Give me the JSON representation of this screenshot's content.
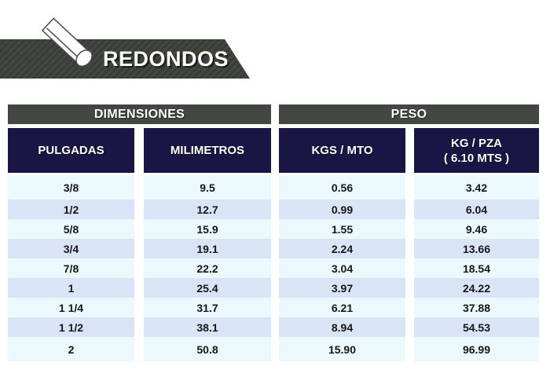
{
  "banner": {
    "title": "REDONDOS",
    "icon": "round-bar-icon"
  },
  "colors": {
    "banner_gray": "#424742",
    "banner_stripe": "#353a34",
    "header_navy": "#191544",
    "row_light": "#ecf9fc",
    "row_blue": "#d9e4f6",
    "text_dark": "#161616",
    "text_light": "#ffffff"
  },
  "tables": {
    "dimensiones": {
      "title": "DIMENSIONES",
      "col1": "PULGADAS",
      "col2": "MILIMETROS",
      "rows": [
        [
          "3/8",
          "9.5"
        ],
        [
          "1/2",
          "12.7"
        ],
        [
          "5/8",
          "15.9"
        ],
        [
          "3/4",
          "19.1"
        ],
        [
          "7/8",
          "22.2"
        ],
        [
          "1",
          "25.4"
        ],
        [
          "1 1/4",
          "31.7"
        ],
        [
          "1 1/2",
          "38.1"
        ],
        [
          "2",
          "50.8"
        ]
      ]
    },
    "peso": {
      "title": "PESO",
      "col1": "KGS / MTO",
      "col2_line1": "KG / PZA",
      "col2_line2": "( 6.10 MTS )",
      "rows": [
        [
          "0.56",
          "3.42"
        ],
        [
          "0.99",
          "6.04"
        ],
        [
          "1.55",
          "9.46"
        ],
        [
          "2.24",
          "13.66"
        ],
        [
          "3.04",
          "18.54"
        ],
        [
          "3.97",
          "24.22"
        ],
        [
          "6.21",
          "37.88"
        ],
        [
          "8.94",
          "54.53"
        ],
        [
          "15.90",
          "96.99"
        ]
      ]
    }
  }
}
